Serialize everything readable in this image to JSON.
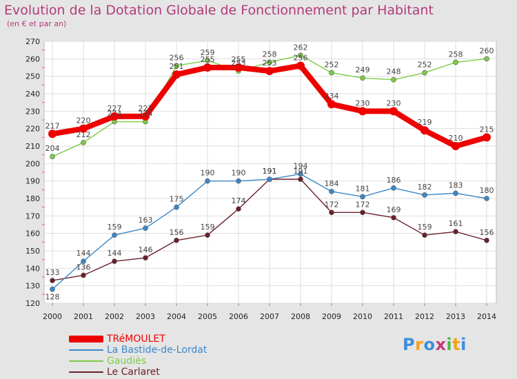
{
  "title": "Evolution de la Dotation Globale de Fonctionnement par Habitant",
  "subtitle": "(en € et par an)",
  "logo": {
    "text": "Proxiti",
    "colors": [
      "#3b8ede",
      "#f2a31b",
      "#3b8ede",
      "#c33b7a",
      "#4bb84b",
      "#f2a31b",
      "#3b8ede"
    ]
  },
  "chart_data": {
    "type": "line",
    "title": "Evolution de la Dotation Globale de Fonctionnement par Habitant",
    "subtitle": "(en € et par an)",
    "x": [
      "2000",
      "2001",
      "2002",
      "2003",
      "2004",
      "2005",
      "2006",
      "2007",
      "2008",
      "2009",
      "2010",
      "2011",
      "2012",
      "2013",
      "2014"
    ],
    "ylim": [
      120,
      270
    ],
    "yticks": [
      120,
      130,
      140,
      150,
      160,
      170,
      180,
      190,
      200,
      210,
      220,
      230,
      240,
      250,
      260,
      270
    ],
    "grid": true,
    "legend_position": "bottom-left",
    "series": [
      {
        "name": "TRéMOULET",
        "color": "#ee0000",
        "values": [
          217,
          220,
          227,
          227,
          251,
          255,
          255,
          253,
          256,
          234,
          230,
          230,
          219,
          210,
          215
        ]
      },
      {
        "name": "La Bastide-de-Lordat",
        "color": "#3a87c8",
        "values": [
          128,
          144,
          159,
          163,
          175,
          190,
          190,
          191,
          194,
          184,
          181,
          186,
          182,
          183,
          180
        ]
      },
      {
        "name": "Gaudiès",
        "color": "#7ccc44",
        "values": [
          204,
          212,
          224,
          224,
          256,
          259,
          253,
          258,
          262,
          252,
          249,
          248,
          252,
          258,
          260
        ]
      },
      {
        "name": "Le Carlaret",
        "color": "#6b1f2a",
        "values": [
          133,
          136,
          144,
          146,
          156,
          159,
          174,
          191,
          191,
          172,
          172,
          169,
          159,
          161,
          156
        ]
      }
    ]
  }
}
